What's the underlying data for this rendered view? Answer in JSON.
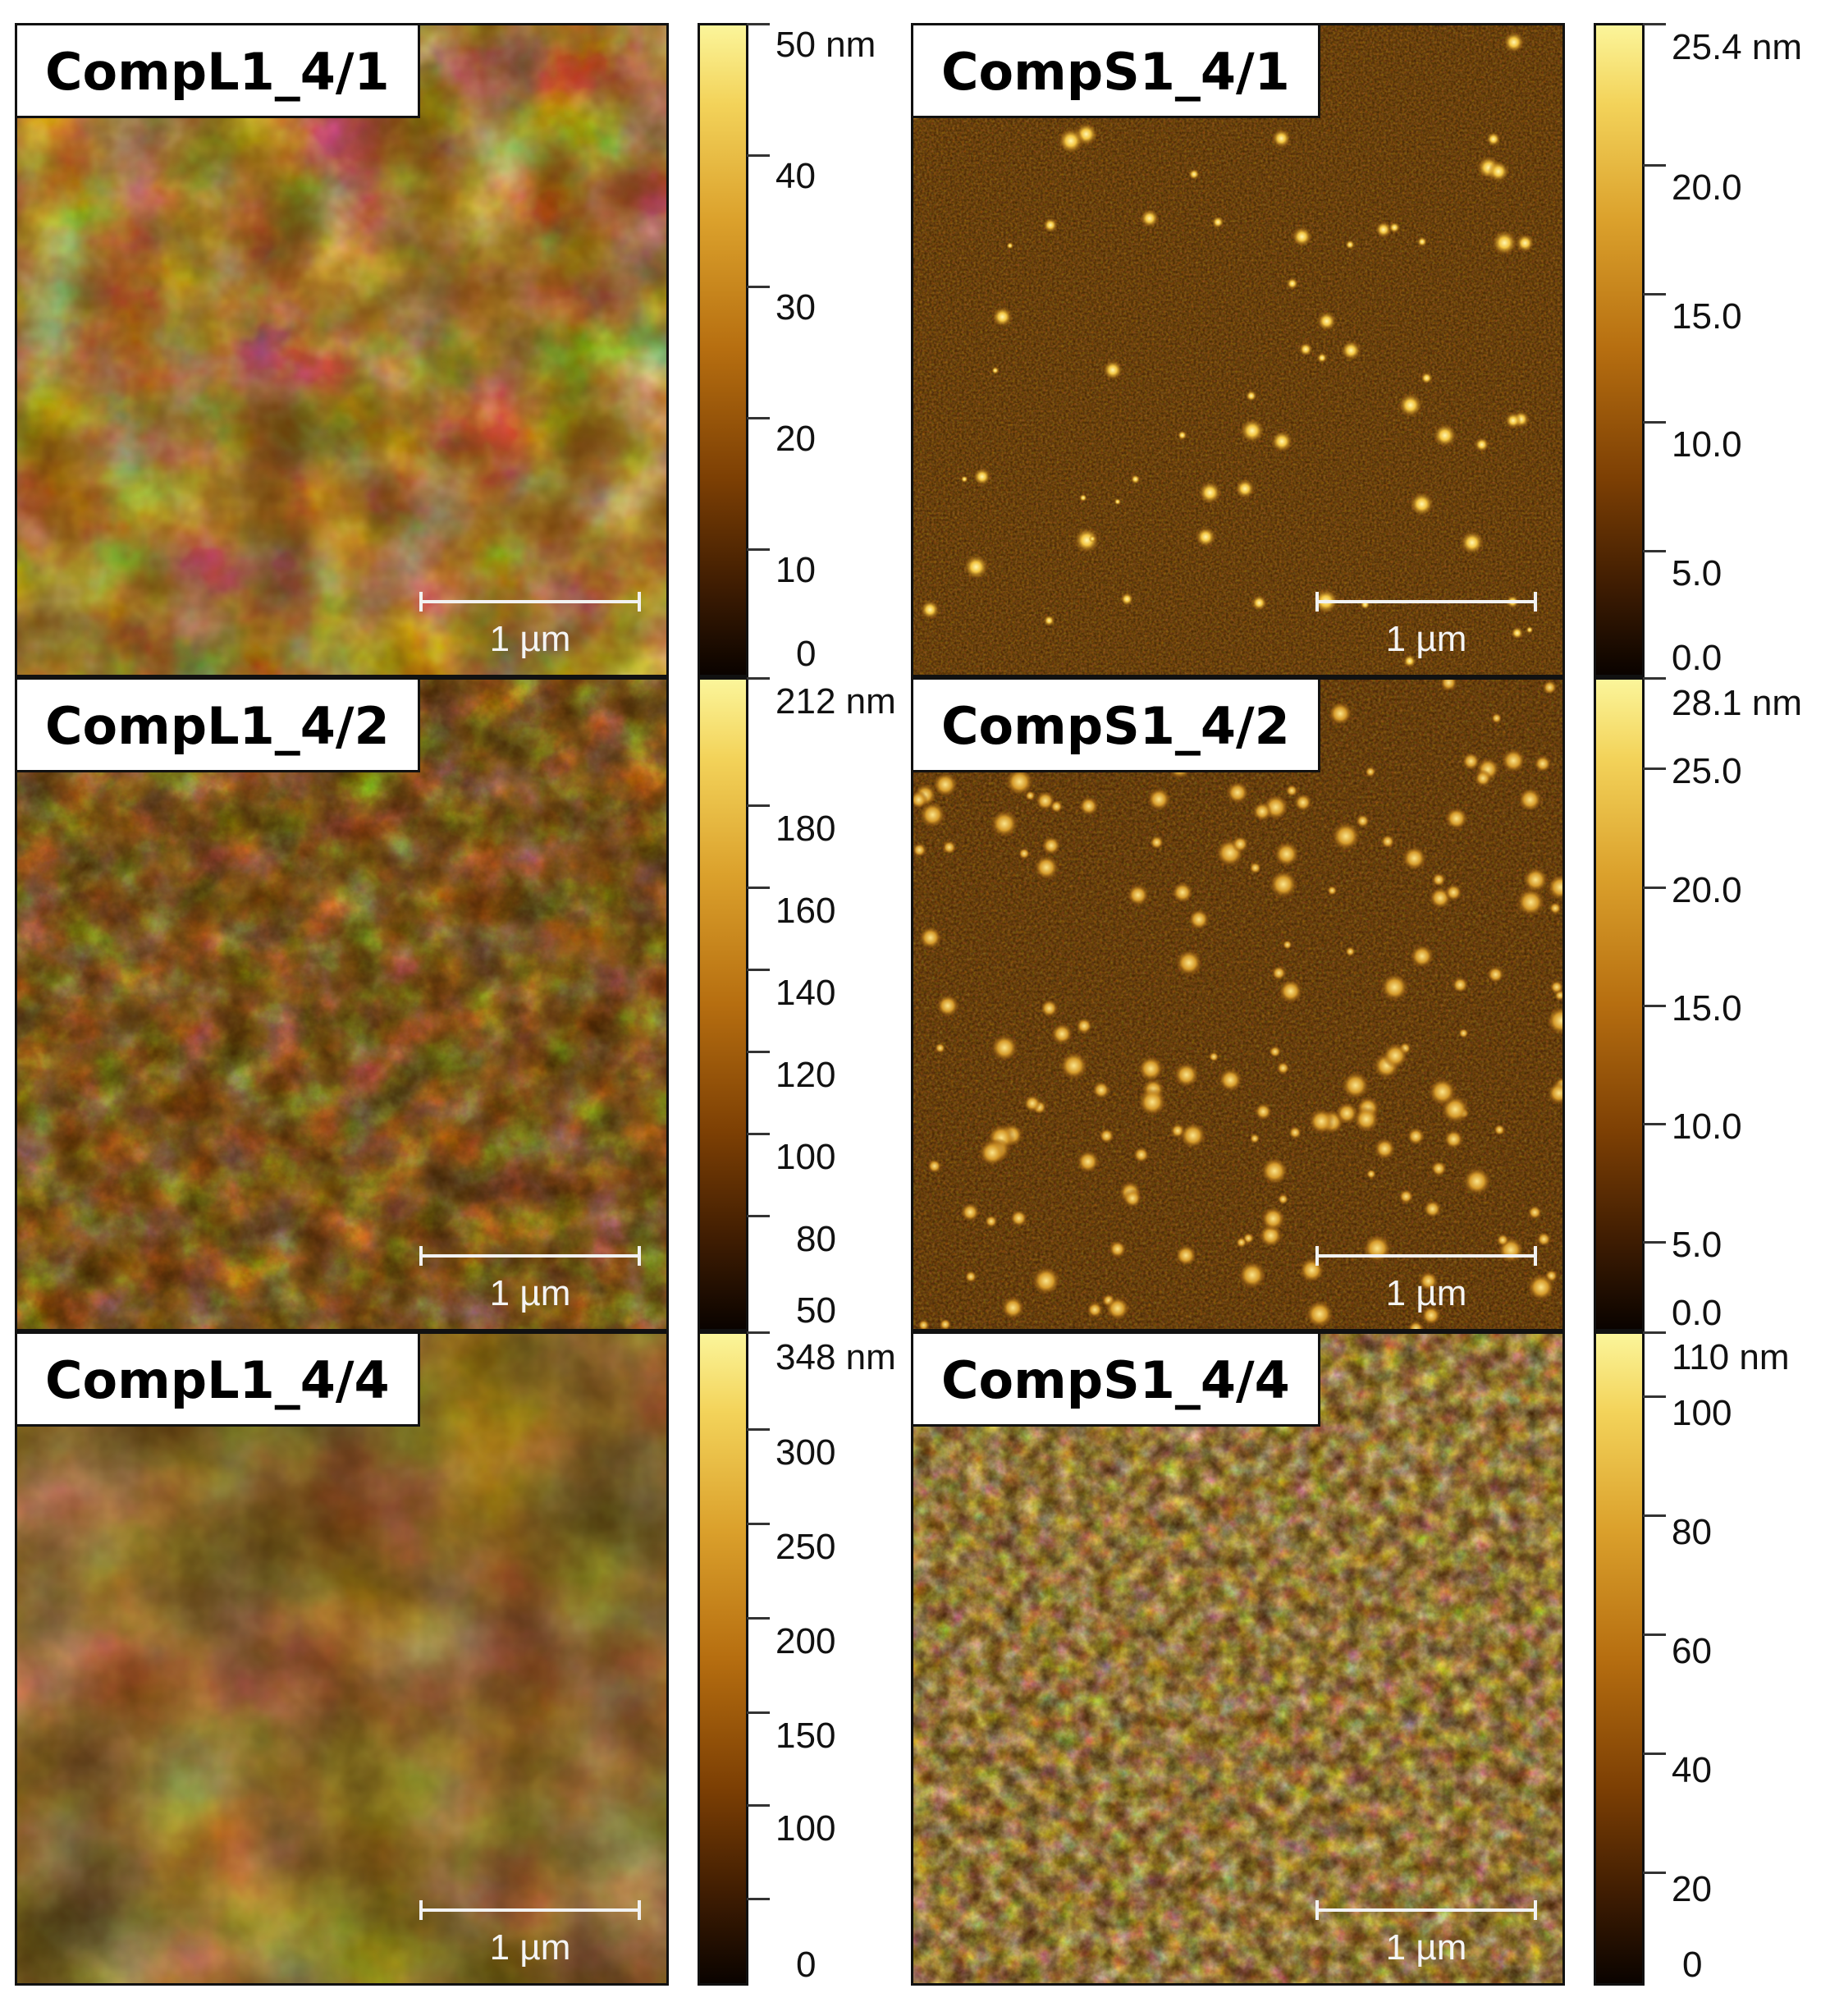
{
  "panels": [
    {
      "label": "CompL1_4/1",
      "scale_label": "1 µm",
      "colorbar": {
        "max_label": "50 nm",
        "ticks": [
          "40",
          "30",
          "20",
          "10",
          "0"
        ]
      }
    },
    {
      "label": "CompS1_4/1",
      "scale_label": "1 µm",
      "colorbar": {
        "max_label": "25.4 nm",
        "ticks": [
          "20.0",
          "15.0",
          "10.0",
          "5.0",
          "0.0"
        ]
      }
    },
    {
      "label": "CompL1_4/2",
      "scale_label": "1 µm",
      "colorbar": {
        "max_label": "212 nm",
        "ticks": [
          "180",
          "160",
          "140",
          "120",
          "100",
          "80",
          "50"
        ]
      }
    },
    {
      "label": "CompS1_4/2",
      "scale_label": "1 µm",
      "colorbar": {
        "max_label": "28.1 nm",
        "ticks": [
          "25.0",
          "20.0",
          "15.0",
          "10.0",
          "5.0",
          "0.0"
        ]
      }
    },
    {
      "label": "CompL1_4/4",
      "scale_label": "1 µm",
      "colorbar": {
        "max_label": "348 nm",
        "ticks": [
          "300",
          "250",
          "200",
          "150",
          "100",
          "0"
        ]
      }
    },
    {
      "label": "CompS1_4/4",
      "scale_label": "1 µm",
      "colorbar": {
        "max_label": "110 nm",
        "ticks": [
          "100",
          "80",
          "60",
          "40",
          "20",
          "0"
        ]
      }
    }
  ],
  "colors": {
    "bright": "#fbf59a",
    "mid": "#b66e10",
    "dark": "#0a0300"
  }
}
